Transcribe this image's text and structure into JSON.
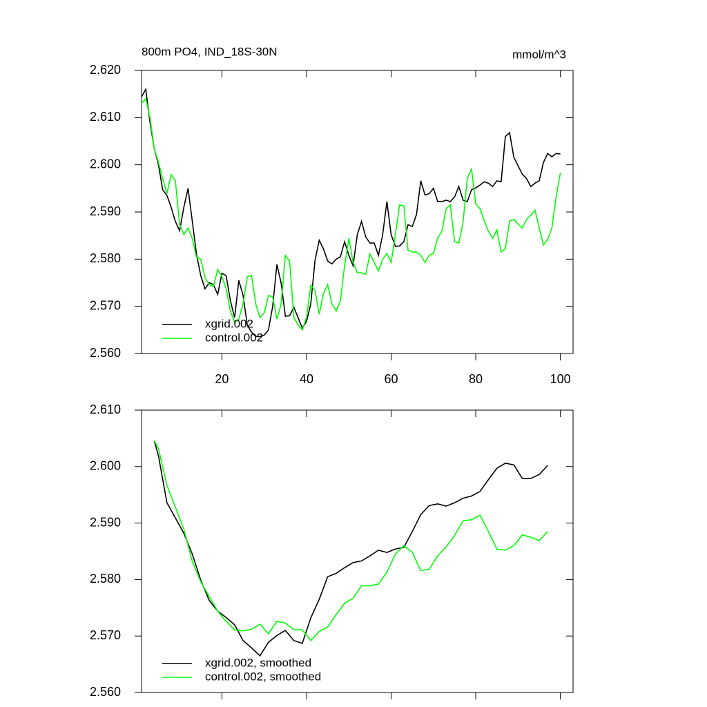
{
  "chart_data": [
    {
      "type": "line",
      "title": "800m PO4, IND_18S-30N",
      "units": "mmol/m^3",
      "x": [
        1,
        2,
        3,
        4,
        5,
        6,
        7,
        8,
        9,
        10,
        11,
        12,
        13,
        14,
        15,
        16,
        17,
        18,
        19,
        20,
        21,
        22,
        23,
        24,
        25,
        26,
        27,
        28,
        29,
        30,
        31,
        32,
        33,
        34,
        35,
        36,
        37,
        38,
        39,
        40,
        41,
        42,
        43,
        44,
        45,
        46,
        47,
        48,
        49,
        50,
        51,
        52,
        53,
        54,
        55,
        56,
        57,
        58,
        59,
        60,
        61,
        62,
        63,
        64,
        65,
        66,
        67,
        68,
        69,
        70,
        71,
        72,
        73,
        74,
        75,
        76,
        77,
        78,
        79,
        80,
        81,
        82,
        83,
        84,
        85,
        86,
        87,
        88,
        89,
        90,
        91,
        92,
        93,
        94,
        95,
        96,
        97,
        98,
        99,
        100
      ],
      "series": [
        {
          "name": "xgrid.002",
          "color": "#000000",
          "values": [
            2.6144,
            2.616,
            2.609,
            2.6035,
            2.6,
            2.5947,
            2.5935,
            2.591,
            2.588,
            2.586,
            2.591,
            2.595,
            2.588,
            2.581,
            2.5765,
            2.5737,
            2.575,
            2.5746,
            2.5725,
            2.577,
            2.5765,
            2.5712,
            2.5676,
            2.5755,
            2.5723,
            2.566,
            2.5645,
            2.5636,
            2.5636,
            2.5639,
            2.565,
            2.57,
            2.5789,
            2.5749,
            2.5679,
            2.568,
            2.5698,
            2.5676,
            2.5654,
            2.5668,
            2.5705,
            2.5797,
            2.584,
            2.5822,
            2.5796,
            2.579,
            2.58,
            2.5805,
            2.5837,
            2.5808,
            2.5786,
            2.5852,
            2.588,
            2.5847,
            2.5834,
            2.5834,
            2.5808,
            2.5852,
            2.5922,
            2.5852,
            2.5827,
            2.5828,
            2.5837,
            2.5873,
            2.5869,
            2.5895,
            2.5966,
            2.5936,
            2.5939,
            2.595,
            2.5922,
            2.5922,
            2.5925,
            2.5922,
            2.5932,
            2.5954,
            2.5925,
            2.5922,
            2.5947,
            2.5951,
            2.5957,
            2.5964,
            2.5961,
            2.5954,
            2.5966,
            2.5964,
            2.606,
            2.6068,
            2.6016,
            2.5998,
            2.598,
            2.5971,
            2.5954,
            2.5961,
            2.5966,
            2.6005,
            2.6024,
            2.6017,
            2.6024,
            2.6023
          ]
        },
        {
          "name": "control.002",
          "color": "#00ff00",
          "values": [
            2.613,
            2.614,
            2.61,
            2.6035,
            2.6005,
            2.5971,
            2.5939,
            2.5979,
            2.5966,
            2.5874,
            2.5852,
            2.5866,
            2.5844,
            2.5803,
            2.58,
            2.5761,
            2.5746,
            2.5742,
            2.5778,
            2.5763,
            2.5737,
            2.569,
            2.5666,
            2.5673,
            2.5705,
            2.5763,
            2.5765,
            2.5705,
            2.5676,
            2.5686,
            2.5723,
            2.572,
            2.5673,
            2.5705,
            2.5808,
            2.5796,
            2.5676,
            2.5661,
            2.565,
            2.5676,
            2.5745,
            2.5734,
            2.5683,
            2.5727,
            2.5746,
            2.5705,
            2.569,
            2.5712,
            2.5786,
            2.5844,
            2.5793,
            2.5771,
            2.5771,
            2.5768,
            2.5811,
            2.5793,
            2.5775,
            2.58,
            2.5812,
            2.5793,
            2.5852,
            2.5915,
            2.5913,
            2.5819,
            2.5815,
            2.5815,
            2.5808,
            2.5793,
            2.5808,
            2.5812,
            2.5844,
            2.5859,
            2.5907,
            2.5915,
            2.5837,
            2.5834,
            2.5878,
            2.5971,
            2.5991,
            2.5917,
            2.5907,
            2.5881,
            2.5859,
            2.5844,
            2.5862,
            2.5815,
            2.5822,
            2.5881,
            2.5884,
            2.5874,
            2.5866,
            2.5884,
            2.5893,
            2.5904,
            2.5866,
            2.583,
            2.5842,
            2.5866,
            2.5932,
            2.5983
          ]
        }
      ],
      "xlim": [
        1,
        103
      ],
      "xticks": [
        20,
        40,
        60,
        80,
        100
      ],
      "ylim": [
        2.56,
        2.62
      ],
      "yticks": [
        {
          "value": 2.56,
          "label": "2.560"
        },
        {
          "value": 2.57,
          "label": "2.570"
        },
        {
          "value": 2.58,
          "label": "2.580"
        },
        {
          "value": 2.59,
          "label": "2.590"
        },
        {
          "value": 2.6,
          "label": "2.600"
        },
        {
          "value": 2.61,
          "label": "2.610"
        },
        {
          "value": 2.62,
          "label": "2.620"
        }
      ],
      "legend": "lower left"
    },
    {
      "type": "line",
      "x": [
        4,
        5,
        7,
        9,
        11,
        13,
        15,
        17,
        19,
        21,
        23,
        25,
        27,
        29,
        31,
        33,
        35,
        37,
        39,
        41,
        43,
        45,
        47,
        49,
        51,
        53,
        55,
        57,
        59,
        61,
        63,
        65,
        67,
        69,
        71,
        73,
        75,
        77,
        79,
        81,
        83,
        85,
        87,
        89,
        91,
        93,
        95,
        97
      ],
      "series": [
        {
          "name": "xgrid.002, smoothed",
          "color": "#000000",
          "values": [
            2.6046,
            2.6019,
            2.5936,
            2.5909,
            2.5882,
            2.5845,
            2.5799,
            2.5763,
            2.5744,
            2.5733,
            2.572,
            2.5692,
            2.5679,
            2.5665,
            2.5689,
            2.5701,
            2.571,
            2.5692,
            2.5687,
            2.5732,
            2.5765,
            2.5805,
            2.5811,
            2.5821,
            2.583,
            2.5833,
            2.5842,
            2.5852,
            2.5848,
            2.5854,
            2.5857,
            2.5885,
            2.5915,
            2.5931,
            2.5934,
            2.593,
            2.5936,
            2.5944,
            2.5948,
            2.5956,
            2.5977,
            2.5997,
            2.6006,
            2.6003,
            2.5979,
            2.5979,
            2.5986,
            2.6002
          ]
        },
        {
          "name": "control.002, smoothed",
          "color": "#00ff00",
          "values": [
            2.6046,
            2.6032,
            2.5967,
            2.5928,
            2.5889,
            2.5832,
            2.5796,
            2.577,
            2.5744,
            2.5726,
            2.5711,
            2.5709,
            2.5712,
            2.5721,
            2.5704,
            2.5726,
            2.5723,
            2.5711,
            2.5711,
            2.5692,
            2.5708,
            2.5716,
            2.5738,
            2.5758,
            2.5767,
            2.5789,
            2.5789,
            2.5792,
            2.5813,
            2.5845,
            2.586,
            2.5848,
            2.5816,
            2.5818,
            2.5842,
            2.5858,
            2.5878,
            2.5904,
            2.5906,
            2.5914,
            2.5885,
            2.5854,
            2.5852,
            2.586,
            2.5879,
            2.5875,
            2.5869,
            2.5885
          ]
        }
      ],
      "xlim": [
        1,
        103
      ],
      "ylim": [
        2.56,
        2.61
      ],
      "yticks": [
        {
          "value": 2.56,
          "label": "2.560"
        },
        {
          "value": 2.57,
          "label": "2.570"
        },
        {
          "value": 2.58,
          "label": "2.580"
        },
        {
          "value": 2.59,
          "label": "2.590"
        },
        {
          "value": 2.6,
          "label": "2.600"
        },
        {
          "value": 2.61,
          "label": "2.610"
        }
      ],
      "legend": "lower left"
    }
  ]
}
